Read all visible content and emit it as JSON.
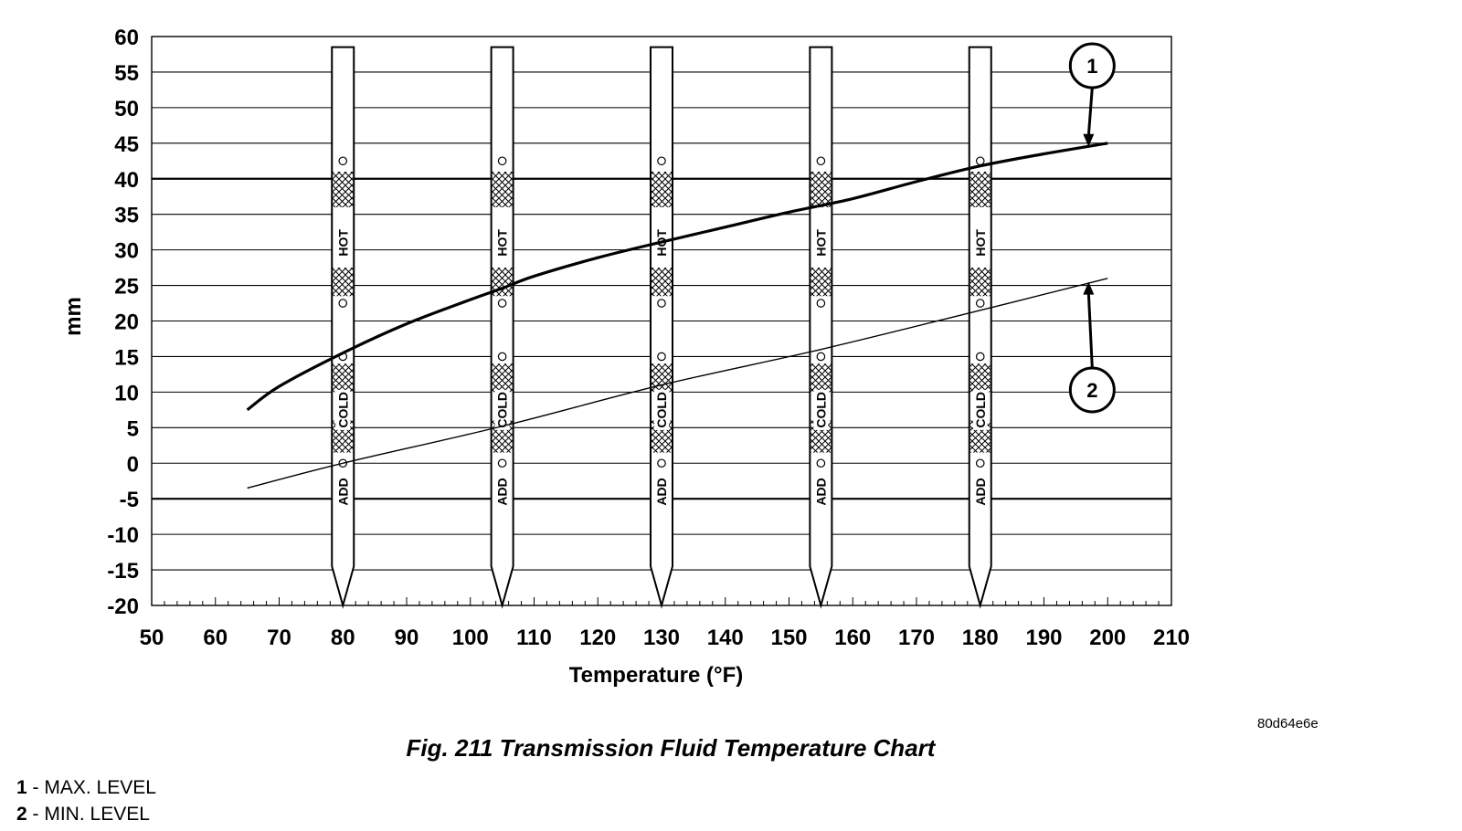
{
  "chart_data": {
    "type": "line",
    "title": "Fig. 211 Transmission Fluid Temperature Chart",
    "xlabel": "Temperature (°F)",
    "ylabel": "mm",
    "xlim": [
      50,
      210
    ],
    "ylim": [
      -20,
      60
    ],
    "x_ticks": [
      50,
      60,
      70,
      80,
      90,
      100,
      110,
      120,
      130,
      140,
      150,
      160,
      170,
      180,
      190,
      200,
      210
    ],
    "y_ticks": [
      60,
      55,
      50,
      45,
      40,
      35,
      30,
      25,
      20,
      15,
      10,
      5,
      0,
      -5,
      -10,
      -15,
      -20
    ],
    "grid": "horizontal",
    "emphasized_gridlines": [
      40,
      -5
    ],
    "series": [
      {
        "name": "1",
        "callout": "1",
        "x": [
          65,
          70,
          80,
          90,
          100,
          105,
          110,
          120,
          130,
          140,
          150,
          160,
          170,
          180,
          190,
          200
        ],
        "y": [
          7.5,
          10.8,
          15.5,
          19.6,
          23.0,
          24.6,
          26.3,
          28.9,
          31.1,
          33.2,
          35.3,
          37.2,
          39.6,
          41.8,
          43.5,
          45.0
        ]
      },
      {
        "name": "2",
        "callout": "2",
        "x": [
          65,
          80,
          105,
          130,
          155,
          180,
          200
        ],
        "y": [
          -3.5,
          0,
          5.2,
          11.0,
          16.0,
          21.5,
          26.0
        ]
      }
    ],
    "dipsticks": {
      "temperatures": [
        80,
        105,
        130,
        155,
        180
      ],
      "labels": {
        "hot": "HOT",
        "cold": "COLD",
        "add": "ADD"
      }
    },
    "callouts": [
      {
        "number": "1",
        "points_to_x": 197,
        "points_to_y": 44.5
      },
      {
        "number": "2",
        "points_to_x": 197,
        "points_to_y": 25.5
      }
    ]
  },
  "figure_id": "80d64e6e",
  "caption": "Fig. 211 Transmission Fluid Temperature Chart",
  "legend": [
    {
      "num": "1",
      "text": " - MAX. LEVEL"
    },
    {
      "num": "2",
      "text": " - MIN. LEVEL"
    }
  ]
}
